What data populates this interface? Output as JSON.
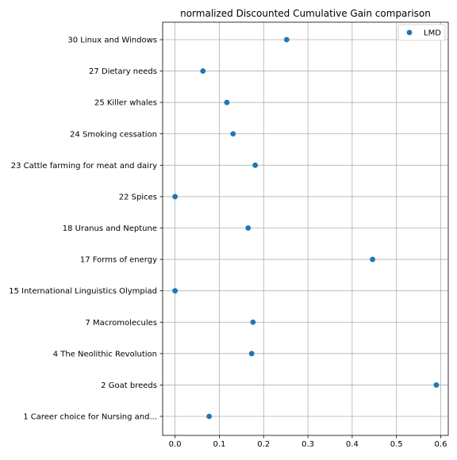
{
  "chart_data": {
    "type": "scatter",
    "title": "normalized Discounted Cumulative Gain comparison",
    "xlabel": "",
    "ylabel": "",
    "xlim": [
      -0.028,
      0.617
    ],
    "xticks": [
      "0.0",
      "0.1",
      "0.2",
      "0.3",
      "0.4",
      "0.5",
      "0.6"
    ],
    "xtick_values": [
      0.0,
      0.1,
      0.2,
      0.3,
      0.4,
      0.5,
      0.6
    ],
    "grid": true,
    "legend_position": "top-right",
    "marker_color": "#1f77b4",
    "categories": [
      "30 Linux and Windows",
      "27 Dietary needs",
      "25 Killer whales",
      "24 Smoking cessation",
      "23 Cattle farming for meat and dairy",
      "22 Spices",
      "18 Uranus and Neptune",
      "17 Forms of energy",
      "15 International Linguistics Olympiad",
      "7 Macromolecules",
      "4 The Neolithic Revolution",
      "2 Goat breeds",
      "1 Career choice for Nursing and..."
    ],
    "series": [
      {
        "name": "LMD",
        "values": [
          0.252,
          0.063,
          0.117,
          0.131,
          0.181,
          0.0,
          0.165,
          0.446,
          0.0,
          0.176,
          0.173,
          0.59,
          0.077
        ]
      }
    ]
  }
}
